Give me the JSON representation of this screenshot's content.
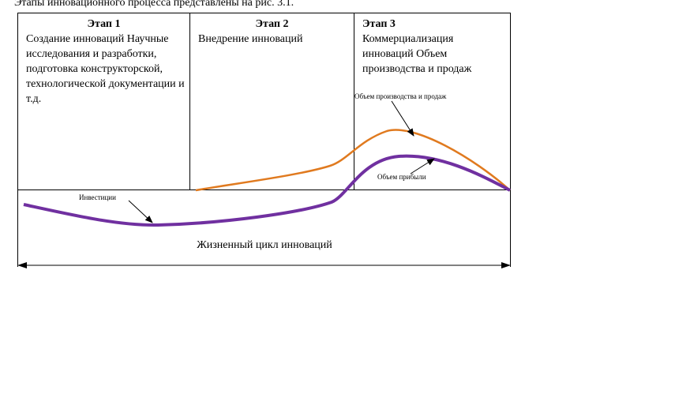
{
  "caption": "Этапы инновационного процесса представлены на рис. 3.1.",
  "stages": [
    {
      "title": "Этап 1",
      "text": "Создание инноваций Научные исследования и разработки, подготовка конструкторской, технологической документации и т.д."
    },
    {
      "title": "Этап 2",
      "text": "Внедрение инноваций"
    },
    {
      "title": "Этап 3",
      "text": "Коммерциализация инноваций Объем производства и продаж"
    }
  ],
  "curves": {
    "sales": {
      "label": "Объем производства и продаж",
      "color": "#E07A1F"
    },
    "profit": {
      "label": "Объем  прибыли",
      "color": "#7030A0"
    },
    "investment": {
      "label": "Инвестиции",
      "color": "#7030A0"
    }
  },
  "lifecycle_label": "Жизненный цикл инноваций"
}
